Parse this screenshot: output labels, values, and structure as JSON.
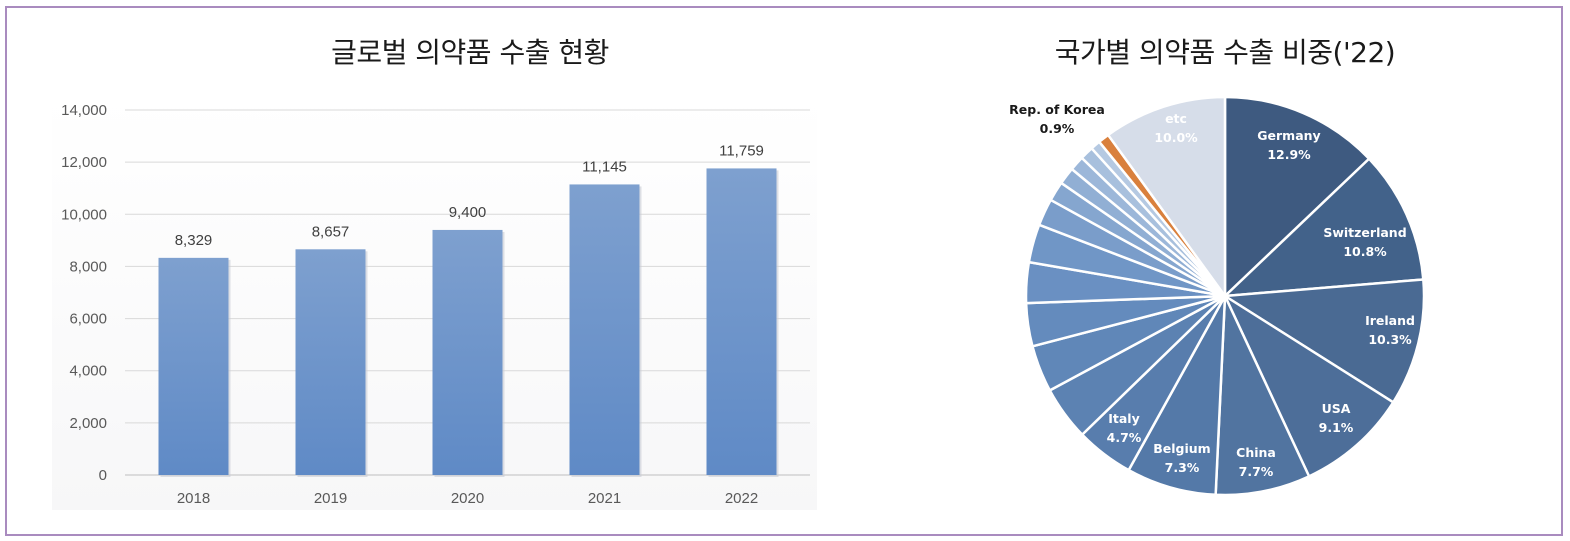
{
  "bar_chart_title": "글로벌 의약품 수출 현황",
  "pie_chart_title": "국가별 의약품 수출 비중('22)",
  "colors": {
    "bar": "#5f8ac6",
    "bar_light": "#7ea0cf",
    "korea": "#d9803d",
    "etc": "#d6dde9",
    "frame": "#a98bbf"
  },
  "chart_data": [
    {
      "type": "bar",
      "title": "글로벌 의약품 수출 현황",
      "categories": [
        "2018",
        "2019",
        "2020",
        "2021",
        "2022"
      ],
      "values": [
        8329,
        8657,
        9400,
        11145,
        11759
      ],
      "value_labels": [
        "8,329",
        "8,657",
        "9,400",
        "11,145",
        "11,759"
      ],
      "ylim": [
        0,
        14000
      ],
      "yticks": [
        "0",
        "2,000",
        "4,000",
        "6,000",
        "8,000",
        "10,000",
        "12,000",
        "14,000"
      ],
      "grid": true,
      "xlabel": "",
      "ylabel": ""
    },
    {
      "type": "pie",
      "title": "국가별 의약품 수출 비중('22)",
      "slices": [
        {
          "label": "Germany",
          "pct_label": "12.9%",
          "value": 12.9,
          "color": "#3e5a80"
        },
        {
          "label": "Switzerland",
          "pct_label": "10.8%",
          "value": 10.8,
          "color": "#42628a"
        },
        {
          "label": "Ireland",
          "pct_label": "10.3%",
          "value": 10.3,
          "color": "#4a6a93"
        },
        {
          "label": "USA",
          "pct_label": "9.1%",
          "value": 9.1,
          "color": "#4d6e99"
        },
        {
          "label": "China",
          "pct_label": "7.7%",
          "value": 7.7,
          "color": "#5174a0"
        },
        {
          "label": "Belgium",
          "pct_label": "7.3%",
          "value": 7.3,
          "color": "#5479a8"
        },
        {
          "label": "Italy",
          "pct_label": "4.7%",
          "value": 4.7,
          "color": "#587dad"
        },
        {
          "label": "",
          "pct_label": "",
          "value": 4.4,
          "color": "#5c82b2"
        },
        {
          "label": "",
          "pct_label": "",
          "value": 3.8,
          "color": "#6087b8"
        },
        {
          "label": "",
          "pct_label": "",
          "value": 3.5,
          "color": "#648bbd"
        },
        {
          "label": "",
          "pct_label": "",
          "value": 3.3,
          "color": "#6a90c2"
        },
        {
          "label": "",
          "pct_label": "",
          "value": 3.1,
          "color": "#7096c6"
        },
        {
          "label": "",
          "pct_label": "",
          "value": 2.2,
          "color": "#7a9dca"
        },
        {
          "label": "",
          "pct_label": "",
          "value": 1.6,
          "color": "#85a6cf"
        },
        {
          "label": "",
          "pct_label": "",
          "value": 1.4,
          "color": "#91afd4"
        },
        {
          "label": "",
          "pct_label": "",
          "value": 1.2,
          "color": "#9cb7d9"
        },
        {
          "label": "",
          "pct_label": "",
          "value": 1.1,
          "color": "#a8c0dd"
        },
        {
          "label": "",
          "pct_label": "",
          "value": 0.8,
          "color": "#b5c9e2"
        },
        {
          "label": "Rep. of Korea",
          "pct_label": "0.9%",
          "value": 0.9,
          "color": "#d9803d"
        },
        {
          "label": "etc",
          "pct_label": "10.0%",
          "value": 10.0,
          "color": "#d6dde9"
        }
      ]
    }
  ]
}
